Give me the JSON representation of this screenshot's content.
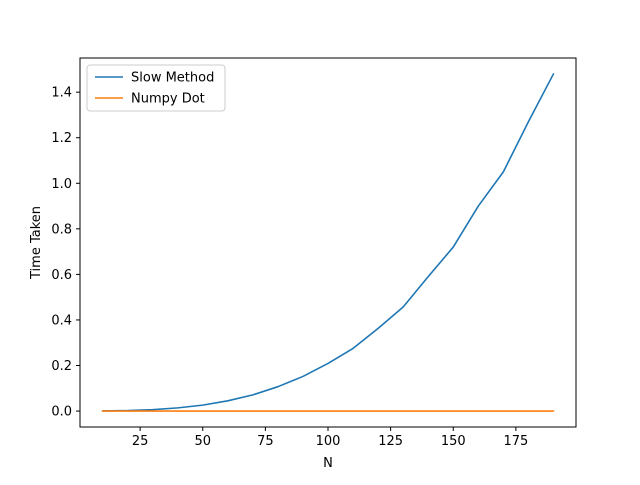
{
  "chart_data": {
    "type": "line",
    "title": "",
    "xlabel": "N",
    "ylabel": "Time Taken",
    "xlim": [
      1,
      199
    ],
    "ylim": [
      -0.07,
      1.55
    ],
    "xticks": [
      25,
      50,
      75,
      100,
      125,
      150,
      175
    ],
    "yticks": [
      0.0,
      0.2,
      0.4,
      0.6,
      0.8,
      1.0,
      1.2,
      1.4
    ],
    "ytick_labels": [
      "0.0",
      "0.2",
      "0.4",
      "0.6",
      "0.8",
      "1.0",
      "1.2",
      "1.4"
    ],
    "grid": false,
    "legend_position": "upper-left",
    "x": [
      10,
      20,
      30,
      40,
      50,
      60,
      70,
      80,
      90,
      100,
      110,
      120,
      130,
      140,
      150,
      160,
      170,
      180,
      190
    ],
    "series": [
      {
        "name": "Slow Method",
        "color": "#1f77b4",
        "values": [
          0.0005,
          0.002,
          0.006,
          0.014,
          0.026,
          0.045,
          0.071,
          0.107,
          0.152,
          0.209,
          0.275,
          0.363,
          0.457,
          0.59,
          0.72,
          0.9,
          1.05,
          1.27,
          1.48
        ]
      },
      {
        "name": "Numpy Dot",
        "color": "#ff7f0e",
        "values": [
          0.0,
          0.0,
          0.0,
          0.0,
          0.0,
          0.0,
          0.0,
          0.0,
          0.0,
          0.0,
          0.0,
          0.0,
          0.0,
          0.0,
          0.0,
          0.0,
          0.0,
          0.0,
          0.0
        ]
      }
    ]
  }
}
